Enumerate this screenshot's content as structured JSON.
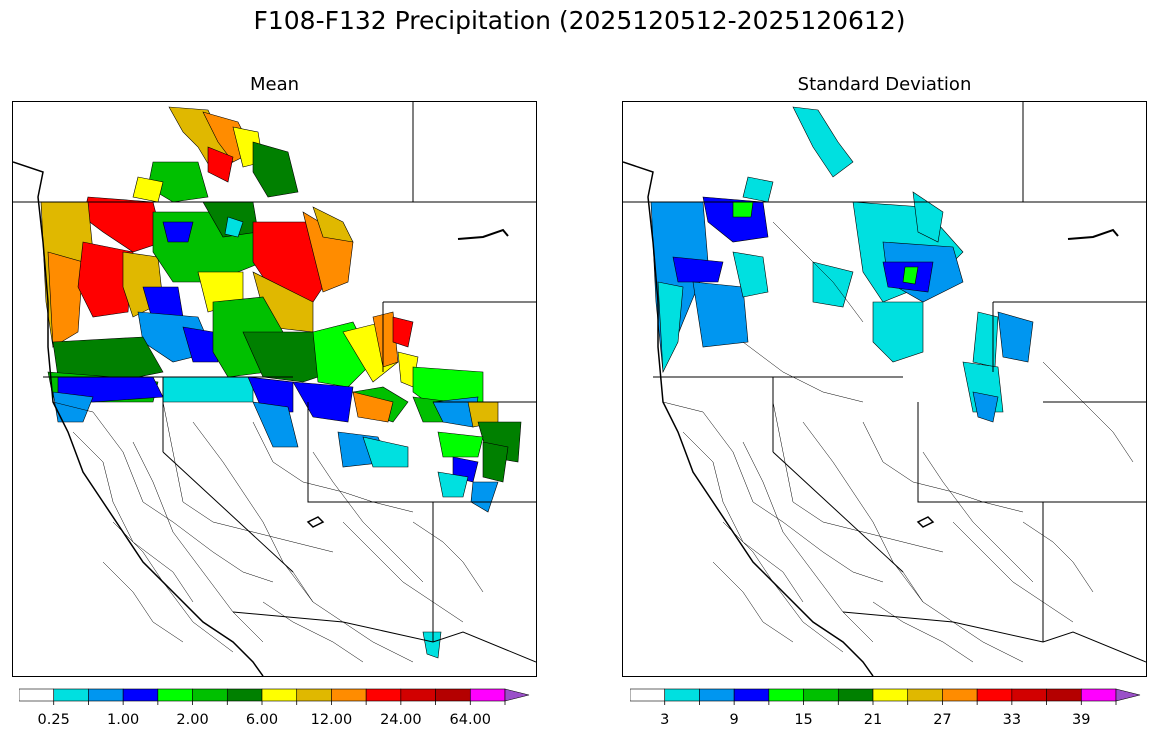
{
  "figure": {
    "title": "F108-F132 Precipitation (2025120512-2025120612)"
  },
  "panels": [
    {
      "title": "Mean",
      "colorbar": {
        "colors": [
          "#ffffff",
          "#00e0e0",
          "#0096f0",
          "#0000ff",
          "#00ff00",
          "#00c000",
          "#008000",
          "#ffff00",
          "#e0b800",
          "#ff8c00",
          "#ff0000",
          "#d20000",
          "#b40000",
          "#ff00ff",
          "#9a50c8"
        ],
        "tick_labels": [
          "0.25",
          "1.00",
          "2.00",
          "6.00",
          "12.00",
          "24.00",
          "64.00"
        ],
        "extend": "max"
      }
    },
    {
      "title": "Standard Deviation",
      "colorbar": {
        "colors": [
          "#ffffff",
          "#00e0e0",
          "#0096f0",
          "#0000ff",
          "#00ff00",
          "#00c000",
          "#008000",
          "#ffff00",
          "#e0b800",
          "#ff8c00",
          "#ff0000",
          "#d20000",
          "#b40000",
          "#ff00ff",
          "#9a50c8"
        ],
        "tick_labels": [
          "3",
          "9",
          "15",
          "21",
          "27",
          "33",
          "39"
        ],
        "extend": "max"
      }
    }
  ]
}
